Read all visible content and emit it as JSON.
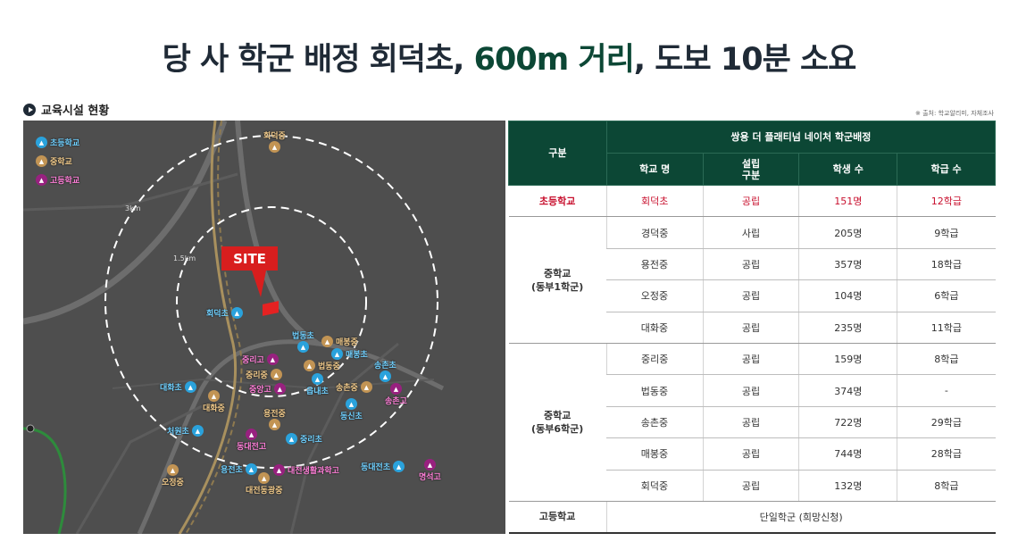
{
  "title": {
    "prefix": "당 사 학군 배정 회덕초, ",
    "highlight": "600m 거리",
    "suffix": ", 도보 10분 소요"
  },
  "section_label": "교육시설 현황",
  "source_note": "※ 출처: 학교알리미, 자체조사",
  "colors": {
    "header_green": "#0c4735",
    "highlight_red": "#c8102e",
    "elem": "#2aa2dc",
    "mid": "#c29454",
    "high": "#98217f"
  },
  "map": {
    "legend": [
      "초등학교",
      "중학교",
      "고등학교"
    ],
    "ring_labels": {
      "outer": "3km",
      "inner": "1.5km"
    },
    "site_label": "SITE",
    "markers": {
      "m1": "회덕중",
      "m2": "회덕초",
      "m3": "법동초",
      "m4": "매봉중",
      "m5": "중리고",
      "m6": "매봉초",
      "m7": "중리중",
      "m8": "법동중",
      "m9": "송촌초",
      "m10": "중앙고",
      "m11": "읍내초",
      "m12": "송촌중",
      "m13": "대화초",
      "m14": "송촌고",
      "m15": "대화중",
      "m16": "용전중",
      "m17": "동신초",
      "m18": "처원초",
      "m19": "중리초",
      "m20": "동대전고",
      "m21": "오정중",
      "m22": "용전초",
      "m23": "대전생활과학고",
      "m24": "동대전초",
      "m25": "명석고",
      "m26": "대전동광중"
    }
  },
  "table": {
    "header_top": "쌍용 더 플래티넘 네이처 학군배정",
    "col_category": "구분",
    "cols": [
      "학교 명",
      "설립\n구분",
      "학생 수",
      "학급 수"
    ],
    "elementary": {
      "category": "초등학교",
      "row": [
        "회덕초",
        "공립",
        "151명",
        "12학급"
      ]
    },
    "middle1": {
      "category": "중학교\n(동부1학군)",
      "rows": [
        [
          "경덕중",
          "사립",
          "205명",
          "9학급"
        ],
        [
          "용전중",
          "공립",
          "357명",
          "18학급"
        ],
        [
          "오정중",
          "공립",
          "104명",
          "6학급"
        ],
        [
          "대화중",
          "공립",
          "235명",
          "11학급"
        ]
      ]
    },
    "middle6": {
      "category": "중학교\n(동부6학군)",
      "rows": [
        [
          "중리중",
          "공립",
          "159명",
          "8학급"
        ],
        [
          "법동중",
          "공립",
          "374명",
          "-"
        ],
        [
          "송촌중",
          "공립",
          "722명",
          "29학급"
        ],
        [
          "매봉중",
          "공립",
          "744명",
          "28학급"
        ],
        [
          "회덕중",
          "공립",
          "132명",
          "8학급"
        ]
      ]
    },
    "high": {
      "category": "고등학교",
      "value": "단일학군 (희망신청)"
    }
  }
}
